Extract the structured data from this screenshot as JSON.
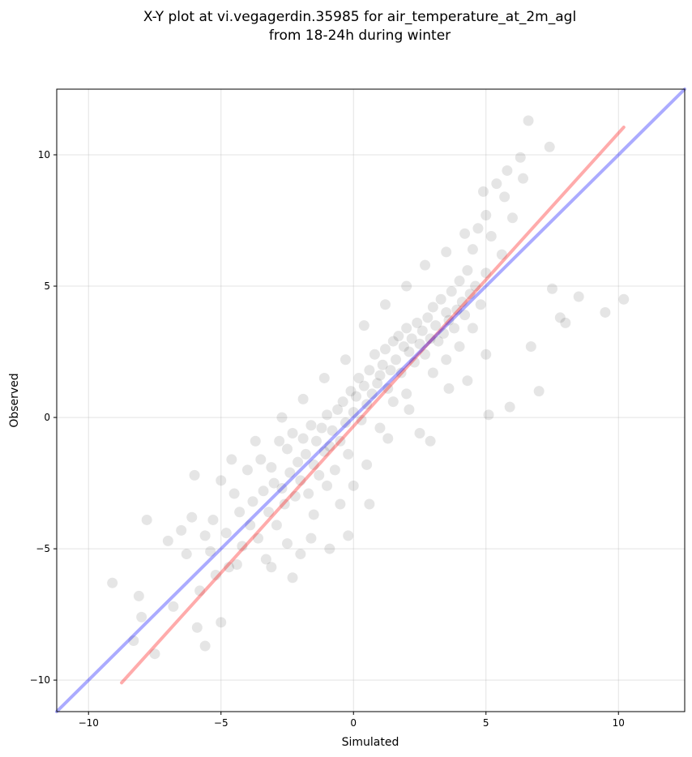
{
  "chart_data": {
    "type": "scatter",
    "title_lines": [
      "X-Y plot at vi.vegagerdin.35985 for air_temperature_at_2m_agl",
      "from 18-24h during winter"
    ],
    "xlabel": "Simulated",
    "ylabel": "Observed",
    "xlim": [
      -11.2,
      12.5
    ],
    "ylim": [
      -11.2,
      12.5
    ],
    "xticks": [
      -10,
      -5,
      0,
      5,
      10
    ],
    "yticks": [
      -10,
      -5,
      0,
      5,
      10
    ],
    "xtick_labels": [
      "−10",
      "−5",
      "0",
      "5",
      "10"
    ],
    "ytick_labels": [
      "−10",
      "−5",
      "0",
      "5",
      "10"
    ],
    "grid": true,
    "point_color": "#000000",
    "point_opacity": 0.1,
    "points": {
      "x": [
        -9.1,
        -8.1,
        -8.0,
        -7.8,
        -7.0,
        -6.5,
        -6.3,
        -6.1,
        -5.8,
        -5.6,
        -5.6,
        -5.4,
        -5.3,
        -5.2,
        -5.0,
        -4.8,
        -4.7,
        -4.5,
        -4.3,
        -4.2,
        -4.0,
        -3.8,
        -3.6,
        -3.5,
        -3.4,
        -3.3,
        -3.2,
        -3.1,
        -3.0,
        -2.9,
        -2.8,
        -2.7,
        -2.6,
        -2.5,
        -2.5,
        -2.4,
        -2.3,
        -2.2,
        -2.1,
        -2.0,
        -2.0,
        -1.9,
        -1.8,
        -1.7,
        -1.6,
        -1.5,
        -1.5,
        -1.4,
        -1.3,
        -1.2,
        -1.1,
        -1.0,
        -1.0,
        -0.9,
        -0.8,
        -0.7,
        -0.6,
        -0.5,
        -0.5,
        -0.4,
        -0.3,
        -0.2,
        -0.1,
        0.0,
        0.0,
        0.1,
        0.2,
        0.3,
        0.4,
        0.5,
        0.5,
        0.6,
        0.7,
        0.8,
        0.9,
        1.0,
        1.0,
        1.1,
        1.2,
        1.3,
        1.4,
        1.5,
        1.5,
        1.6,
        1.7,
        1.8,
        1.9,
        2.0,
        2.0,
        2.1,
        2.2,
        2.3,
        2.4,
        2.5,
        2.5,
        2.6,
        2.7,
        2.8,
        2.9,
        3.0,
        3.0,
        3.1,
        3.2,
        3.3,
        3.4,
        3.5,
        3.5,
        3.6,
        3.7,
        3.8,
        3.9,
        4.0,
        4.0,
        4.1,
        4.2,
        4.3,
        4.4,
        4.5,
        4.5,
        4.6,
        4.7,
        4.8,
        4.9,
        5.0,
        5.0,
        5.2,
        5.4,
        5.6,
        5.8,
        6.0,
        6.3,
        6.6,
        7.0,
        7.5,
        8.0,
        8.5,
        9.5,
        10.2,
        -8.3,
        -7.5,
        -6.8,
        -5.9,
        -5.0,
        -4.4,
        -3.9,
        -3.1,
        -2.3,
        -1.6,
        -0.9,
        -0.2,
        0.6,
        1.3,
        2.1,
        2.9,
        3.6,
        4.3,
        5.1,
        5.9,
        6.7,
        7.8,
        -6.0,
        -4.6,
        -3.7,
        -2.7,
        -1.9,
        -1.1,
        -0.3,
        0.4,
        1.2,
        2.0,
        2.7,
        3.5,
        4.2,
        5.0,
        5.7,
        6.4,
        7.4
      ],
      "y": [
        -6.3,
        -6.8,
        -7.6,
        -3.9,
        -4.7,
        -4.3,
        -5.2,
        -3.8,
        -6.6,
        -4.5,
        -8.7,
        -5.1,
        -3.9,
        -6.0,
        -2.4,
        -4.4,
        -5.7,
        -2.9,
        -3.6,
        -4.9,
        -2.0,
        -3.2,
        -4.6,
        -1.6,
        -2.8,
        -5.4,
        -3.6,
        -1.9,
        -2.5,
        -4.1,
        -0.9,
        -2.7,
        -3.3,
        -1.2,
        -4.8,
        -2.1,
        -0.6,
        -3.0,
        -1.7,
        -2.4,
        -5.2,
        -0.8,
        -1.4,
        -2.9,
        -0.3,
        -1.8,
        -3.7,
        -0.9,
        -2.2,
        -0.4,
        -1.3,
        -2.6,
        0.1,
        -1.1,
        -0.5,
        -2.0,
        0.3,
        -0.9,
        -3.3,
        0.6,
        -0.2,
        -1.4,
        1.0,
        0.2,
        -2.6,
        0.8,
        1.5,
        -0.1,
        1.2,
        0.5,
        -1.8,
        1.8,
        0.9,
        2.4,
        1.3,
        1.6,
        -0.4,
        2.0,
        2.6,
        1.1,
        1.8,
        2.9,
        0.6,
        2.2,
        3.1,
        1.7,
        2.7,
        3.4,
        0.9,
        2.5,
        3.0,
        2.1,
        3.6,
        2.8,
        -0.6,
        3.3,
        2.4,
        3.8,
        3.0,
        4.2,
        1.7,
        3.5,
        2.9,
        4.5,
        3.2,
        4.0,
        2.2,
        3.7,
        4.8,
        3.4,
        4.1,
        5.2,
        2.7,
        4.4,
        3.9,
        5.6,
        4.7,
        6.4,
        3.4,
        5.0,
        7.2,
        4.3,
        8.6,
        5.5,
        2.4,
        6.9,
        8.9,
        6.2,
        9.4,
        7.6,
        9.9,
        11.3,
        1.0,
        4.9,
        3.6,
        4.6,
        4.0,
        4.5,
        -8.5,
        -9.0,
        -7.2,
        -8.0,
        -7.8,
        -5.6,
        -4.1,
        -5.7,
        -6.1,
        -4.6,
        -5.0,
        -4.5,
        -3.3,
        -0.8,
        0.3,
        -0.9,
        1.1,
        1.4,
        0.1,
        0.4,
        2.7,
        3.8,
        -2.2,
        -1.6,
        -0.9,
        0.0,
        0.7,
        1.5,
        2.2,
        3.5,
        4.3,
        5.0,
        5.8,
        6.3,
        7.0,
        7.7,
        8.4,
        9.1,
        10.3
      ]
    },
    "lines": [
      {
        "color": "#ff0000",
        "opacity": 0.33,
        "x": [
          -8.75,
          10.2
        ],
        "y": [
          -10.1,
          11.05
        ]
      },
      {
        "color": "#0000ff",
        "opacity": 0.33,
        "x": [
          -11.2,
          12.5
        ],
        "y": [
          -11.2,
          12.5
        ]
      }
    ]
  }
}
